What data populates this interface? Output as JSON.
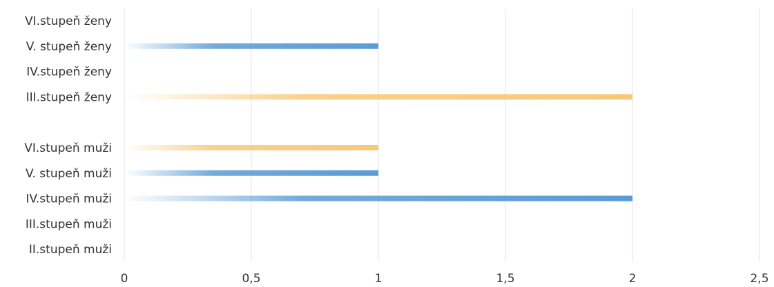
{
  "chart_data": {
    "type": "bar",
    "orientation": "horizontal",
    "categories": [
      "VI.stupeň ženy",
      "V. stupeň ženy",
      "IV.stupeň ženy",
      "III.stupeň ženy",
      "",
      "VI.stupeň muži",
      "V. stupeň muži",
      "IV.stupeň muži",
      "III.stupeň muži",
      "II.stupeň muži"
    ],
    "values": [
      0,
      1,
      0,
      2,
      0,
      1,
      1,
      2,
      0,
      0
    ],
    "bar_colors": [
      "#5b9bd5",
      "#5b9bd5",
      "#5b9bd5",
      "#f7c979",
      "#5b9bd5",
      "#f7c979",
      "#5b9bd5",
      "#5b9bd5",
      "#5b9bd5",
      "#5b9bd5"
    ],
    "title": "",
    "xlabel": "",
    "ylabel": "",
    "xlim": [
      0,
      2.5
    ],
    "x_ticks": [
      0,
      0.5,
      1,
      1.5,
      2,
      2.5
    ],
    "x_tick_labels": [
      "0",
      "0,5",
      "1",
      "1,5",
      "2",
      "2,5"
    ],
    "grid": "vertical",
    "legend": "none"
  }
}
